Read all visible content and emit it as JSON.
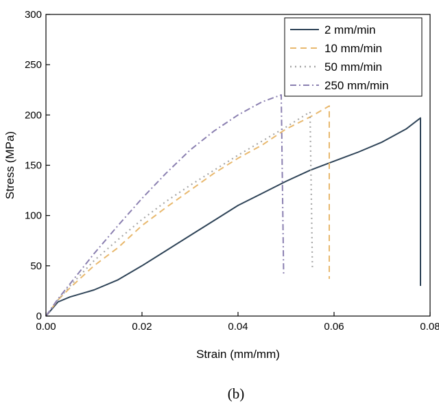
{
  "chart_data": {
    "type": "line",
    "xlabel": "Strain (mm/mm)",
    "ylabel": "Stress (MPa)",
    "xlim": [
      0,
      0.08
    ],
    "ylim": [
      0,
      300
    ],
    "xticks": [
      0,
      0.02,
      0.04,
      0.06,
      0.08
    ],
    "xtick_labels": [
      "0.00",
      "0.02",
      "0.04",
      "0.06",
      "0.08"
    ],
    "yticks": [
      0,
      50,
      100,
      150,
      200,
      250,
      300
    ],
    "ytick_labels": [
      "0",
      "50",
      "100",
      "150",
      "200",
      "250",
      "300"
    ],
    "grid": false,
    "legend_position": "top-right",
    "caption": "(b)",
    "series": [
      {
        "name": "2 mm/min",
        "color": "#2e4357",
        "dash": "solid",
        "x": [
          0,
          0.0025,
          0.005,
          0.01,
          0.015,
          0.02,
          0.025,
          0.03,
          0.035,
          0.04,
          0.045,
          0.05,
          0.055,
          0.06,
          0.065,
          0.07,
          0.075,
          0.078,
          0.078
        ],
        "y": [
          0,
          14,
          19,
          26,
          36,
          50,
          65,
          80,
          95,
          110,
          122,
          134,
          145,
          154,
          163,
          173,
          186,
          197,
          30
        ]
      },
      {
        "name": "10 mm/min",
        "color": "#e8b86d",
        "dash": "dashed",
        "x": [
          0,
          0.0025,
          0.005,
          0.01,
          0.015,
          0.02,
          0.025,
          0.03,
          0.035,
          0.04,
          0.045,
          0.05,
          0.055,
          0.059,
          0.059
        ],
        "y": [
          0,
          16,
          28,
          50,
          68,
          90,
          108,
          125,
          142,
          157,
          170,
          186,
          198,
          209,
          37
        ]
      },
      {
        "name": "50 mm/min",
        "color": "#a6a6a6",
        "dash": "dotted",
        "x": [
          0,
          0.0025,
          0.005,
          0.01,
          0.015,
          0.02,
          0.025,
          0.03,
          0.035,
          0.04,
          0.045,
          0.05,
          0.055,
          0.0555
        ],
        "y": [
          0,
          16,
          30,
          55,
          76,
          96,
          114,
          130,
          145,
          160,
          174,
          188,
          203,
          46
        ]
      },
      {
        "name": "250 mm/min",
        "color": "#8a7fb0",
        "dash": "dashdot",
        "x": [
          0,
          0.0025,
          0.005,
          0.01,
          0.015,
          0.02,
          0.025,
          0.03,
          0.035,
          0.04,
          0.045,
          0.049,
          0.0495
        ],
        "y": [
          0,
          17,
          32,
          62,
          90,
          117,
          142,
          165,
          184,
          200,
          213,
          220,
          41
        ]
      }
    ]
  }
}
